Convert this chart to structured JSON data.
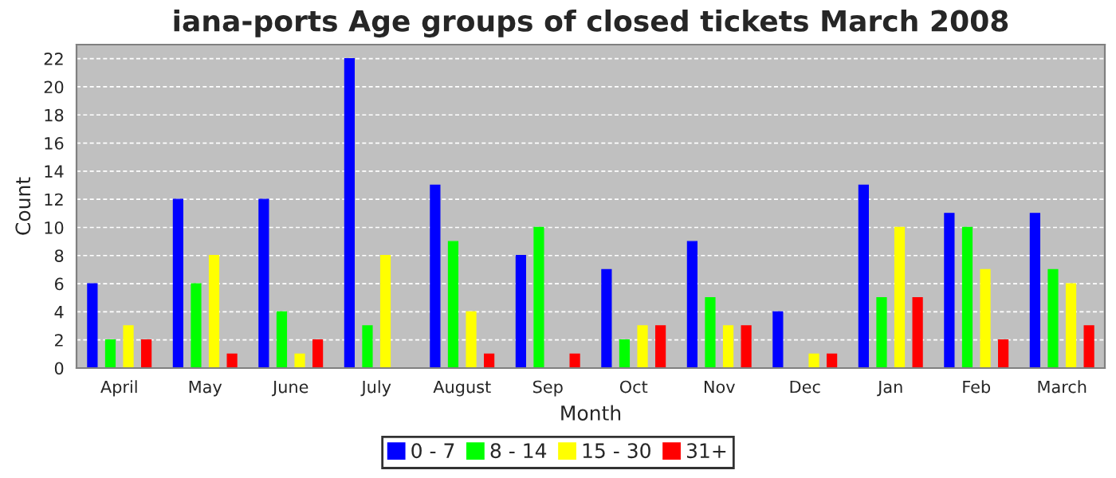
{
  "chart_data": {
    "type": "bar",
    "title": "iana-ports Age groups of closed tickets March 2008",
    "xlabel": "Month",
    "ylabel": "Count",
    "categories": [
      "April",
      "May",
      "June",
      "July",
      "August",
      "Sep",
      "Oct",
      "Nov",
      "Dec",
      "Jan",
      "Feb",
      "March"
    ],
    "series": [
      {
        "name": "0 - 7",
        "color": "#0000ff",
        "values": [
          6,
          12,
          12,
          22,
          13,
          8,
          7,
          9,
          4,
          13,
          11,
          11
        ]
      },
      {
        "name": "8 - 14",
        "color": "#00ff00",
        "values": [
          2,
          6,
          4,
          3,
          9,
          10,
          2,
          5,
          0,
          5,
          10,
          7
        ]
      },
      {
        "name": "15 - 30",
        "color": "#ffff00",
        "values": [
          3,
          8,
          1,
          8,
          4,
          0,
          3,
          3,
          1,
          10,
          7,
          6
        ]
      },
      {
        "name": "31+",
        "color": "#ff0000",
        "values": [
          2,
          1,
          2,
          0,
          1,
          1,
          3,
          3,
          1,
          5,
          2,
          3
        ]
      }
    ],
    "ylim": [
      0,
      23
    ],
    "yticks": [
      0,
      2,
      4,
      6,
      8,
      10,
      12,
      14,
      16,
      18,
      20,
      22
    ],
    "grid": "y",
    "legend": "bottom"
  }
}
